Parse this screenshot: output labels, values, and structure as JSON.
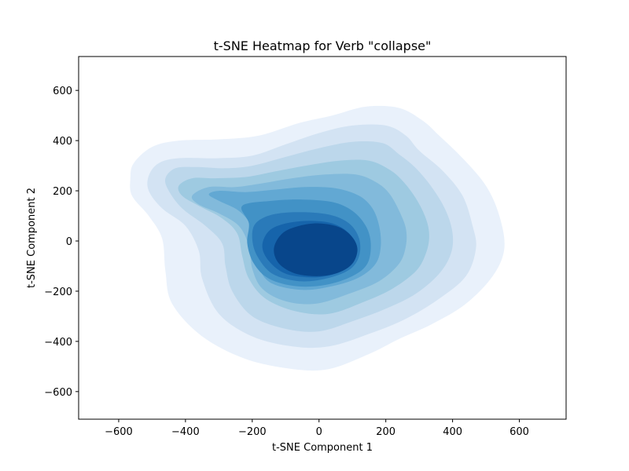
{
  "chart_data": {
    "type": "heatmap",
    "subtype": "kde-contour",
    "title": "t-SNE Heatmap for Verb \"collapse\"",
    "xlabel": "t-SNE Component 1",
    "ylabel": "t-SNE Component 2",
    "xlim": [
      -720,
      740
    ],
    "ylim": [
      -710,
      735
    ],
    "xticks": [
      -600,
      -400,
      -200,
      0,
      200,
      400,
      600
    ],
    "yticks": [
      -600,
      -400,
      -200,
      0,
      200,
      400,
      600
    ],
    "colormap": "Blues",
    "grid": false,
    "levels": [
      {
        "level": 1,
        "color": "#e9f1fb",
        "points": [
          [
            -565,
            250
          ],
          [
            -555,
            310
          ],
          [
            -500,
            375
          ],
          [
            -420,
            400
          ],
          [
            -300,
            405
          ],
          [
            -180,
            420
          ],
          [
            -60,
            470
          ],
          [
            40,
            500
          ],
          [
            140,
            535
          ],
          [
            240,
            530
          ],
          [
            310,
            480
          ],
          [
            360,
            420
          ],
          [
            430,
            330
          ],
          [
            500,
            220
          ],
          [
            540,
            100
          ],
          [
            555,
            -30
          ],
          [
            520,
            -140
          ],
          [
            440,
            -250
          ],
          [
            340,
            -330
          ],
          [
            240,
            -390
          ],
          [
            150,
            -450
          ],
          [
            30,
            -510
          ],
          [
            -80,
            -510
          ],
          [
            -220,
            -470
          ],
          [
            -350,
            -380
          ],
          [
            -440,
            -250
          ],
          [
            -460,
            -120
          ],
          [
            -470,
            10
          ],
          [
            -510,
            100
          ],
          [
            -560,
            180
          ]
        ]
      },
      {
        "level": 2,
        "color": "#d3e3f3",
        "points": [
          [
            -510,
            260
          ],
          [
            -480,
            310
          ],
          [
            -420,
            330
          ],
          [
            -300,
            330
          ],
          [
            -200,
            340
          ],
          [
            -100,
            385
          ],
          [
            0,
            430
          ],
          [
            100,
            460
          ],
          [
            200,
            460
          ],
          [
            260,
            420
          ],
          [
            300,
            360
          ],
          [
            370,
            280
          ],
          [
            430,
            180
          ],
          [
            460,
            60
          ],
          [
            470,
            -30
          ],
          [
            440,
            -140
          ],
          [
            360,
            -230
          ],
          [
            260,
            -310
          ],
          [
            150,
            -370
          ],
          [
            30,
            -420
          ],
          [
            -80,
            -420
          ],
          [
            -200,
            -380
          ],
          [
            -300,
            -290
          ],
          [
            -350,
            -150
          ],
          [
            -360,
            -40
          ],
          [
            -400,
            60
          ],
          [
            -470,
            130
          ],
          [
            -510,
            200
          ]
        ]
      },
      {
        "level": 3,
        "color": "#bcd7eb",
        "points": [
          [
            -460,
            250
          ],
          [
            -430,
            290
          ],
          [
            -370,
            295
          ],
          [
            -280,
            290
          ],
          [
            -200,
            300
          ],
          [
            -100,
            335
          ],
          [
            0,
            370
          ],
          [
            100,
            395
          ],
          [
            190,
            390
          ],
          [
            240,
            345
          ],
          [
            290,
            290
          ],
          [
            340,
            210
          ],
          [
            380,
            120
          ],
          [
            400,
            30
          ],
          [
            395,
            -50
          ],
          [
            360,
            -130
          ],
          [
            290,
            -210
          ],
          [
            200,
            -270
          ],
          [
            100,
            -320
          ],
          [
            0,
            -360
          ],
          [
            -100,
            -350
          ],
          [
            -200,
            -300
          ],
          [
            -260,
            -200
          ],
          [
            -280,
            -100
          ],
          [
            -290,
            -10
          ],
          [
            -340,
            60
          ],
          [
            -410,
            130
          ],
          [
            -450,
            200
          ]
        ]
      },
      {
        "level": 4,
        "color": "#9ecae1",
        "points": [
          [
            -420,
            220
          ],
          [
            -380,
            250
          ],
          [
            -310,
            250
          ],
          [
            -220,
            255
          ],
          [
            -140,
            275
          ],
          [
            -40,
            300
          ],
          [
            60,
            320
          ],
          [
            150,
            320
          ],
          [
            210,
            285
          ],
          [
            250,
            240
          ],
          [
            290,
            170
          ],
          [
            320,
            90
          ],
          [
            330,
            20
          ],
          [
            320,
            -50
          ],
          [
            290,
            -120
          ],
          [
            220,
            -190
          ],
          [
            130,
            -245
          ],
          [
            30,
            -290
          ],
          [
            -70,
            -280
          ],
          [
            -160,
            -230
          ],
          [
            -210,
            -150
          ],
          [
            -230,
            -60
          ],
          [
            -245,
            30
          ],
          [
            -290,
            90
          ],
          [
            -360,
            140
          ],
          [
            -410,
            180
          ]
        ]
      },
      {
        "level": 5,
        "color": "#82badb",
        "points": [
          [
            -380,
            180
          ],
          [
            -330,
            215
          ],
          [
            -250,
            215
          ],
          [
            -170,
            230
          ],
          [
            -80,
            250
          ],
          [
            20,
            265
          ],
          [
            110,
            265
          ],
          [
            170,
            235
          ],
          [
            210,
            190
          ],
          [
            240,
            120
          ],
          [
            260,
            50
          ],
          [
            260,
            -20
          ],
          [
            240,
            -90
          ],
          [
            180,
            -160
          ],
          [
            90,
            -210
          ],
          [
            -10,
            -250
          ],
          [
            -100,
            -240
          ],
          [
            -170,
            -190
          ],
          [
            -200,
            -110
          ],
          [
            -210,
            -20
          ],
          [
            -240,
            60
          ],
          [
            -300,
            110
          ],
          [
            -360,
            145
          ]
        ]
      },
      {
        "level": 6,
        "color": "#62a8d3",
        "points": [
          [
            -330,
            185
          ],
          [
            -300,
            200
          ],
          [
            -220,
            195
          ],
          [
            -130,
            205
          ],
          [
            -40,
            215
          ],
          [
            50,
            210
          ],
          [
            120,
            180
          ],
          [
            160,
            130
          ],
          [
            180,
            60
          ],
          [
            185,
            -20
          ],
          [
            170,
            -90
          ],
          [
            120,
            -145
          ],
          [
            40,
            -180
          ],
          [
            -50,
            -195
          ],
          [
            -140,
            -170
          ],
          [
            -180,
            -110
          ],
          [
            -200,
            -30
          ],
          [
            -205,
            60
          ],
          [
            -240,
            120
          ],
          [
            -300,
            160
          ]
        ]
      },
      {
        "level": 7,
        "color": "#4292c6",
        "points": [
          [
            -230,
            140
          ],
          [
            -140,
            160
          ],
          [
            -50,
            165
          ],
          [
            40,
            155
          ],
          [
            100,
            120
          ],
          [
            140,
            60
          ],
          [
            155,
            -10
          ],
          [
            145,
            -90
          ],
          [
            100,
            -140
          ],
          [
            20,
            -175
          ],
          [
            -70,
            -180
          ],
          [
            -150,
            -150
          ],
          [
            -195,
            -90
          ],
          [
            -215,
            -10
          ],
          [
            -210,
            70
          ]
        ]
      },
      {
        "level": 8,
        "color": "#2a7ab9",
        "points": [
          [
            -190,
            70
          ],
          [
            -140,
            105
          ],
          [
            -60,
            115
          ],
          [
            30,
            105
          ],
          [
            90,
            70
          ],
          [
            120,
            10
          ],
          [
            120,
            -60
          ],
          [
            90,
            -115
          ],
          [
            20,
            -150
          ],
          [
            -60,
            -160
          ],
          [
            -140,
            -130
          ],
          [
            -185,
            -60
          ],
          [
            -200,
            10
          ]
        ]
      },
      {
        "level": 9,
        "color": "#1664ab",
        "points": [
          [
            -150,
            40
          ],
          [
            -100,
            70
          ],
          [
            -30,
            80
          ],
          [
            40,
            70
          ],
          [
            90,
            30
          ],
          [
            105,
            -30
          ],
          [
            95,
            -90
          ],
          [
            50,
            -130
          ],
          [
            -20,
            -145
          ],
          [
            -100,
            -130
          ],
          [
            -150,
            -80
          ],
          [
            -170,
            -20
          ]
        ]
      },
      {
        "level": 10,
        "color": "#08468b",
        "points": [
          [
            -110,
            30
          ],
          [
            -60,
            60
          ],
          [
            0,
            70
          ],
          [
            60,
            55
          ],
          [
            100,
            15
          ],
          [
            115,
            -35
          ],
          [
            100,
            -90
          ],
          [
            60,
            -125
          ],
          [
            0,
            -140
          ],
          [
            -70,
            -130
          ],
          [
            -120,
            -90
          ],
          [
            -135,
            -30
          ]
        ]
      }
    ]
  }
}
